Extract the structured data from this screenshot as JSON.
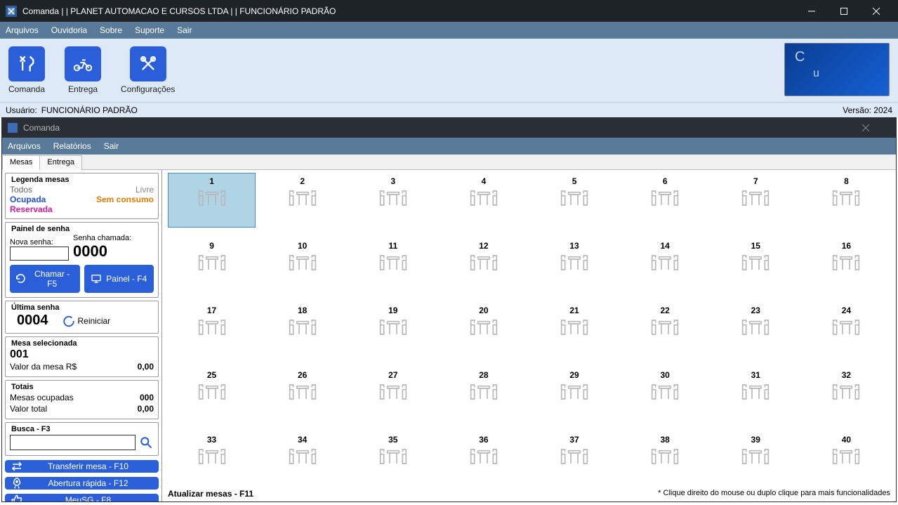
{
  "main_title": "Comanda | | PLANET AUTOMACAO E CURSOS LTDA | | FUNCIONÁRIO PADRÃO",
  "main_menu": [
    "Arquivos",
    "Ouvidoria",
    "Sobre",
    "Suporte",
    "Sair"
  ],
  "toolbar": [
    {
      "label": "Comanda"
    },
    {
      "label": "Entrega"
    },
    {
      "label": "Configurações"
    }
  ],
  "brand_text": "Cu",
  "user_label": "Usuário:",
  "user_value": "FUNCIONÁRIO PADRÃO",
  "version_label": "Versão: 2024",
  "inner_title": "Comanda",
  "inner_menu": [
    "Arquivos",
    "Relatórios",
    "Sair"
  ],
  "tabs": [
    "Mesas",
    "Entrega"
  ],
  "active_tab": 0,
  "legend": {
    "title": "Legenda mesas",
    "items": [
      {
        "label": "Todos",
        "color": "#666666"
      },
      {
        "label": "Livre",
        "color": "#888888"
      },
      {
        "label": "Ocupada",
        "color": "#1e4fd6"
      },
      {
        "label": "Sem consumo",
        "color": "#e07b00"
      },
      {
        "label": "Reservada",
        "color": "#d11c9b"
      }
    ]
  },
  "password_panel": {
    "title": "Painel de senha",
    "new_label": "Nova senha:",
    "called_label": "Senha chamada:",
    "called_value": "0000",
    "btn_call": "Chamar - F5",
    "btn_panel": "Painel - F4"
  },
  "last_password": {
    "title": "Última senha",
    "value": "0004",
    "restart": "Reiniciar"
  },
  "selected_table": {
    "title": "Mesa selecionada",
    "number": "001",
    "value_label": "Valor da mesa R$",
    "value": "0,00"
  },
  "totals": {
    "title": "Totais",
    "occupied_label": "Mesas ocupadas",
    "occupied_value": "000",
    "total_label": "Valor total",
    "total_value": "0,00"
  },
  "search": {
    "title": "Busca - F3"
  },
  "action_buttons": [
    {
      "label": "Transferir mesa - F10"
    },
    {
      "label": "Abertura rápida - F12"
    },
    {
      "label": "MeuSG - F8"
    }
  ],
  "tables": {
    "count": 40,
    "selected": 1
  },
  "footer": {
    "left": "Atualizar mesas - F11",
    "right": "* Clique direito do mouse ou duplo clique para mais funcionalidades"
  },
  "colors": {
    "accent": "#2b5fd9",
    "menubar": "#5a7a9a",
    "toolbar_bg": "#dde9f7",
    "titlebar": "#1e2328",
    "selected_bg": "#aed4e6",
    "selected_border": "#4c8bb5",
    "table_icon": "#b8b8b8"
  }
}
